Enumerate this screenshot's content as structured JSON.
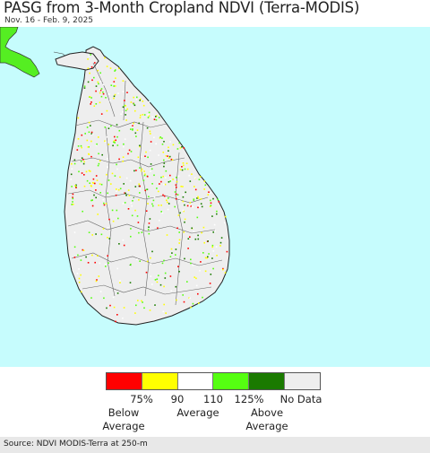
{
  "header": {
    "title": "PASG from 3-Month Cropland NDVI (Terra-MODIS)",
    "date_range": "Nov. 16 - Feb. 9, 2025"
  },
  "map": {
    "ocean_color": "#c6fcfd",
    "land_color": "#ffffff",
    "no_data_color": "#eeeeee",
    "india_color": "#55ee22"
  },
  "legend": {
    "swatches": [
      {
        "color": "#ff0000"
      },
      {
        "color": "#ffff00"
      },
      {
        "color": "#ffffff"
      },
      {
        "color": "#55ff11"
      },
      {
        "color": "#1a7a00"
      },
      {
        "color": "#eeeeee"
      }
    ],
    "ticks": [
      "75%",
      "90",
      "110",
      "125%",
      "No Data"
    ],
    "categories": [
      "Below\nAverage",
      "Average",
      "Above\nAverage"
    ]
  },
  "footer": {
    "source": "Source: NDVI MODIS-Terra at 250-m"
  }
}
